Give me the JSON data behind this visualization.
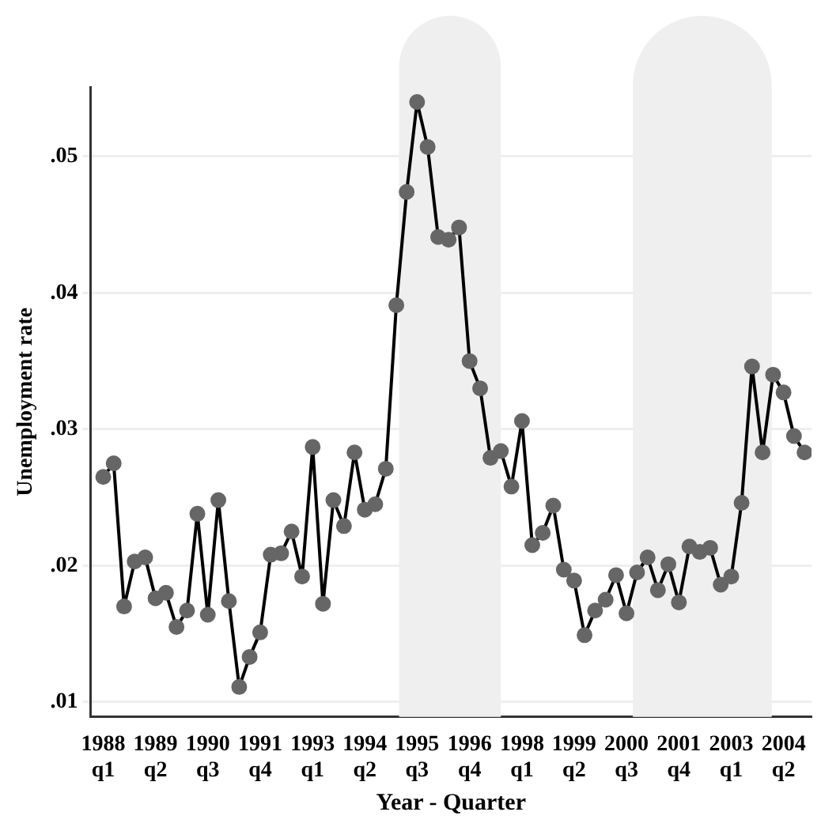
{
  "chart_data": {
    "type": "line",
    "xlabel": "Year - Quarter",
    "ylabel": "Unemployment rate",
    "x": [
      "1988-01",
      "1988-04",
      "1988-07",
      "1988-10",
      "1989-01",
      "1989-04",
      "1989-07",
      "1989-10",
      "1990-01",
      "1990-04",
      "1990-07",
      "1990-10",
      "1991-01",
      "1991-04",
      "1991-07",
      "1991-10",
      "1992-01",
      "1992-04",
      "1992-07",
      "1992-10",
      "1993-01",
      "1993-04",
      "1993-07",
      "1993-10",
      "1994-01",
      "1994-04",
      "1994-07",
      "1994-10",
      "1995-01",
      "1995-04",
      "1995-07",
      "1995-10",
      "1996-01",
      "1996-04",
      "1996-07",
      "1996-10",
      "1997-01",
      "1997-04",
      "1997-07",
      "1997-10",
      "1998-01",
      "1998-04",
      "1998-07",
      "1998-10",
      "1999-01",
      "1999-04",
      "1999-07",
      "1999-10",
      "2000-01",
      "2000-04",
      "2000-07",
      "2000-10",
      "2001-01",
      "2001-04",
      "2001-07",
      "2001-10",
      "2002-01",
      "2002-04",
      "2002-07",
      "2002-10",
      "2003-01",
      "2003-04",
      "2003-07",
      "2003-10",
      "2004-01",
      "2004-04",
      "2004-07",
      "2004-10"
    ],
    "series": [
      {
        "color": "#666666",
        "values": [
          0.0265,
          0.0275,
          0.017,
          0.0203,
          0.0206,
          0.0176,
          0.018,
          0.0155,
          0.0167,
          0.0238,
          0.0164,
          0.0248,
          0.0174,
          0.0111,
          0.0133,
          0.0151,
          0.0208,
          0.0209,
          0.0225,
          0.0192,
          0.0287,
          0.0172,
          0.0248,
          0.0229,
          0.0283,
          0.0241,
          0.0245,
          0.0271,
          0.0391,
          0.0474,
          0.054,
          0.0507,
          0.0441,
          0.0439,
          0.0448,
          0.035,
          0.033,
          0.0279,
          0.0284,
          0.0258,
          0.0306,
          0.0215,
          0.0224,
          0.0244,
          0.0197,
          0.0189,
          0.0149,
          0.0167,
          0.0175,
          0.0193,
          0.0165,
          0.0195,
          0.0206,
          0.0182,
          0.0201,
          0.0173,
          0.0214,
          0.021,
          0.0213,
          0.0186,
          0.0192,
          0.0246,
          0.0346,
          0.0283,
          0.034,
          0.0327,
          0.0295,
          0.0283
        ]
      }
    ],
    "xlim": [
      "1987-09-13",
      "2004-12-01"
    ],
    "ylim": [
      0.0089,
      0.0551
    ],
    "xticks": [
      {
        "value": "1988-01",
        "label": "1988 q1"
      },
      {
        "value": "1989-04",
        "label": "1989 q2"
      },
      {
        "value": "1990-07",
        "label": "1990 q3"
      },
      {
        "value": "1991-10",
        "label": "1991 q4"
      },
      {
        "value": "1993-01",
        "label": "1993 q1"
      },
      {
        "value": "1994-04",
        "label": "1994 q2"
      },
      {
        "value": "1995-07",
        "label": "1995 q3"
      },
      {
        "value": "1996-10",
        "label": "1996 q4"
      },
      {
        "value": "1998-01",
        "label": "1998 q1"
      },
      {
        "value": "1999-04",
        "label": "1999 q2"
      },
      {
        "value": "2000-07",
        "label": "2000 q3"
      },
      {
        "value": "2001-10",
        "label": "2001 q4"
      },
      {
        "value": "2003-01",
        "label": "2003 q1"
      },
      {
        "value": "2004-04",
        "label": "2004 q2"
      }
    ],
    "yticks": [
      {
        "value": 0.01,
        "label": ".01"
      },
      {
        "value": 0.02,
        "label": ".02"
      },
      {
        "value": 0.03,
        "label": ".03"
      },
      {
        "value": 0.04,
        "label": ".04"
      },
      {
        "value": 0.05,
        "label": ".05"
      }
    ],
    "bands": [
      {
        "axis": "x",
        "from": "1995-01-25",
        "to": "1997-07-01",
        "color": "#efefef"
      },
      {
        "axis": "x",
        "from": "2000-08-25",
        "to": "2003-12-20",
        "color": "#efefef"
      }
    ],
    "grid": "y",
    "marker": "circle",
    "line_style": "solid",
    "legend": false
  }
}
